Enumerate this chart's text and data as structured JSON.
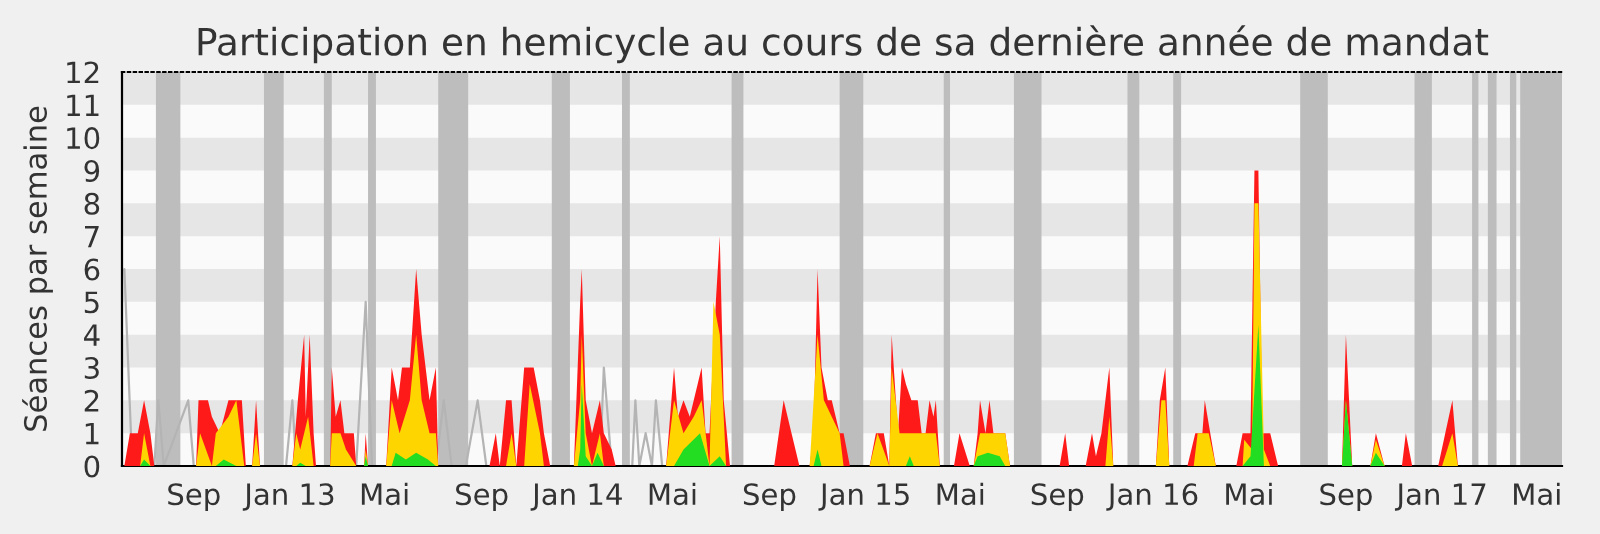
{
  "chart_data": {
    "type": "area",
    "title": "Participation en hemicycle au cours de sa dernière année de mandat",
    "ylabel": "Séances par semaine",
    "xlim": [
      "2012-06-02",
      "2017-06-02"
    ],
    "xticks": [
      {
        "value": "2012-09-01",
        "label": "Sep"
      },
      {
        "value": "2013-01-01",
        "label": "Jan 13"
      },
      {
        "value": "2013-05-01",
        "label": "Mai"
      },
      {
        "value": "2013-09-01",
        "label": "Sep"
      },
      {
        "value": "2014-01-01",
        "label": "Jan 14"
      },
      {
        "value": "2014-05-01",
        "label": "Mai"
      },
      {
        "value": "2014-09-01",
        "label": "Sep"
      },
      {
        "value": "2015-01-01",
        "label": "Jan 15"
      },
      {
        "value": "2015-05-01",
        "label": "Mai"
      },
      {
        "value": "2015-09-01",
        "label": "Sep"
      },
      {
        "value": "2016-01-01",
        "label": "Jan 16"
      },
      {
        "value": "2016-05-01",
        "label": "Mai"
      },
      {
        "value": "2016-09-01",
        "label": "Sep"
      },
      {
        "value": "2017-01-01",
        "label": "Jan 17"
      },
      {
        "value": "2017-05-01",
        "label": "Mai"
      }
    ],
    "ylim": [
      0,
      12
    ],
    "yticks": [
      0,
      1,
      2,
      3,
      4,
      5,
      6,
      7,
      8,
      9,
      10,
      11,
      12
    ],
    "bands": [
      {
        "axis": "y",
        "from": 1,
        "to": 2,
        "color": "#e6e6e6"
      },
      {
        "axis": "y",
        "from": 3,
        "to": 4,
        "color": "#e6e6e6"
      },
      {
        "axis": "y",
        "from": 5,
        "to": 6,
        "color": "#e6e6e6"
      },
      {
        "axis": "y",
        "from": 7,
        "to": 8,
        "color": "#e6e6e6"
      },
      {
        "axis": "y",
        "from": 9,
        "to": 10,
        "color": "#e6e6e6"
      },
      {
        "axis": "y",
        "from": 11,
        "to": 12,
        "color": "#e6e6e6"
      },
      {
        "axis": "x",
        "from": "2012-07-15",
        "to": "2012-08-15",
        "color": "#bdbdbd"
      },
      {
        "axis": "x",
        "from": "2012-11-29",
        "to": "2012-12-24",
        "color": "#bdbdbd"
      },
      {
        "axis": "x",
        "from": "2013-02-13",
        "to": "2013-02-23",
        "color": "#bdbdbd"
      },
      {
        "axis": "x",
        "from": "2013-04-10",
        "to": "2013-04-20",
        "color": "#bdbdbd"
      },
      {
        "axis": "x",
        "from": "2013-07-08",
        "to": "2013-08-15",
        "color": "#bdbdbd"
      },
      {
        "axis": "x",
        "from": "2013-11-29",
        "to": "2013-12-22",
        "color": "#bdbdbd"
      },
      {
        "axis": "x",
        "from": "2014-02-26",
        "to": "2014-03-08",
        "color": "#bdbdbd"
      },
      {
        "axis": "x",
        "from": "2014-07-15",
        "to": "2014-07-30",
        "color": "#bdbdbd"
      },
      {
        "axis": "x",
        "from": "2014-11-29",
        "to": "2014-12-29",
        "color": "#bdbdbd"
      },
      {
        "axis": "x",
        "from": "2015-04-10",
        "to": "2015-04-18",
        "color": "#bdbdbd"
      },
      {
        "axis": "x",
        "from": "2015-07-08",
        "to": "2015-08-12",
        "color": "#bdbdbd"
      },
      {
        "axis": "x",
        "from": "2015-11-29",
        "to": "2015-12-14",
        "color": "#bdbdbd"
      },
      {
        "axis": "x",
        "from": "2016-01-26",
        "to": "2016-02-05",
        "color": "#bdbdbd"
      },
      {
        "axis": "x",
        "from": "2016-07-05",
        "to": "2016-08-09",
        "color": "#bdbdbd"
      },
      {
        "axis": "x",
        "from": "2016-11-27",
        "to": "2016-12-19",
        "color": "#bdbdbd"
      },
      {
        "axis": "x",
        "from": "2017-02-08",
        "to": "2017-02-16",
        "color": "#bdbdbd"
      },
      {
        "axis": "x",
        "from": "2017-02-28",
        "to": "2017-03-11",
        "color": "#bdbdbd"
      },
      {
        "axis": "x",
        "from": "2017-03-28",
        "to": "2017-04-05",
        "color": "#bdbdbd"
      },
      {
        "axis": "x",
        "from": "2017-04-10",
        "to": "2017-06-02",
        "color": "#bdbdbd"
      }
    ],
    "series": [
      {
        "type": "line",
        "color": "#b4b4b4",
        "x": [
          "2012-06-05",
          "2012-06-15",
          "2012-07-13",
          "2012-07-18",
          "2012-07-25",
          "2012-08-25",
          "2012-09-01",
          "2012-11-11",
          "2012-11-19",
          "2012-11-24",
          "2012-12-27",
          "2013-01-04",
          "2013-01-09",
          "2013-03-26",
          "2013-04-07",
          "2013-04-15",
          "2013-07-05",
          "2013-07-15",
          "2013-07-25",
          "2013-08-12",
          "2013-08-27",
          "2013-09-07",
          "2014-01-29",
          "2014-02-03",
          "2014-02-13",
          "2014-03-11",
          "2014-03-15",
          "2014-03-20",
          "2014-03-28",
          "2014-04-05",
          "2014-04-10",
          "2014-04-18"
        ],
        "values": [
          6,
          0,
          0,
          2,
          0,
          2,
          0,
          0,
          null,
          0,
          0,
          2,
          0,
          0,
          5,
          0,
          0,
          2,
          0,
          0,
          2,
          0,
          0,
          3,
          0,
          0,
          2,
          0,
          1,
          0,
          2,
          0
        ]
      },
      {
        "color": "#ff1a1a",
        "x": [
          "2012-06-05",
          "2012-06-12",
          "2012-06-22",
          "2012-06-30",
          "2012-07-08",
          "2012-07-13",
          "2012-09-04",
          "2012-09-07",
          "2012-09-19",
          "2012-09-24",
          "2012-10-04",
          "2012-10-15",
          "2012-11-01",
          "2012-11-06",
          "2012-11-14",
          "2012-11-19",
          "2012-11-24",
          "2013-01-04",
          "2013-01-11",
          "2013-01-19",
          "2013-01-21",
          "2013-01-26",
          "2013-01-31",
          "2013-02-03",
          "2013-02-21",
          "2013-02-23",
          "2013-02-28",
          "2013-03-06",
          "2013-03-11",
          "2013-03-15",
          "2013-03-23",
          "2013-03-26",
          "2013-04-05",
          "2013-04-07",
          "2013-04-10",
          "2013-05-03",
          "2013-05-10",
          "2013-05-18",
          "2013-05-23",
          "2013-06-02",
          "2013-06-10",
          "2013-06-17",
          "2013-06-27",
          "2013-07-05",
          "2013-07-08",
          "2013-09-11",
          "2013-09-19",
          "2013-09-24",
          "2013-10-02",
          "2013-10-09",
          "2013-10-15",
          "2013-10-25",
          "2013-10-29",
          "2013-11-06",
          "2013-11-14",
          "2013-11-19",
          "2013-11-27",
          "2013-12-27",
          "2014-01-04",
          "2014-01-06",
          "2014-01-11",
          "2014-01-19",
          "2014-01-29",
          "2014-02-03",
          "2014-02-13",
          "2014-02-18",
          "2014-04-23",
          "2014-05-03",
          "2014-05-08",
          "2014-05-15",
          "2014-05-23",
          "2014-05-28",
          "2014-06-02",
          "2014-06-07",
          "2014-06-12",
          "2014-06-17",
          "2014-06-25",
          "2014-06-30",
          "2014-07-05",
          "2014-07-13",
          "2014-09-07",
          "2014-09-19",
          "2014-09-29",
          "2014-10-09",
          "2014-10-22",
          "2014-10-27",
          "2014-11-01",
          "2014-11-06",
          "2014-11-14",
          "2014-11-19",
          "2014-11-29",
          "2014-12-04",
          "2014-12-12",
          "2015-01-06",
          "2015-01-14",
          "2015-01-24",
          "2015-01-31",
          "2015-02-03",
          "2015-02-11",
          "2015-02-16",
          "2015-02-21",
          "2015-02-28",
          "2015-03-08",
          "2015-03-13",
          "2015-03-18",
          "2015-03-23",
          "2015-03-28",
          "2015-03-31",
          "2015-04-05",
          "2015-04-23",
          "2015-04-30",
          "2015-05-13",
          "2015-05-18",
          "2015-05-23",
          "2015-05-26",
          "2015-06-02",
          "2015-06-07",
          "2015-06-12",
          "2015-06-17",
          "2015-06-27",
          "2015-07-03",
          "2015-09-04",
          "2015-09-11",
          "2015-09-16",
          "2015-10-07",
          "2015-10-15",
          "2015-10-20",
          "2015-10-27",
          "2015-11-01",
          "2015-11-06",
          "2015-11-11",
          "2016-01-04",
          "2016-01-09",
          "2016-01-16",
          "2016-01-21",
          "2016-02-13",
          "2016-02-23",
          "2016-03-03",
          "2016-03-06",
          "2016-03-13",
          "2016-03-20",
          "2016-04-15",
          "2016-04-23",
          "2016-04-27",
          "2016-05-03",
          "2016-05-08",
          "2016-05-13",
          "2016-05-18",
          "2016-05-28",
          "2016-06-07",
          "2016-08-27",
          "2016-09-01",
          "2016-09-09",
          "2016-10-02",
          "2016-10-09",
          "2016-10-20",
          "2016-11-11",
          "2016-11-16",
          "2016-11-24",
          "2016-12-27",
          "2017-01-14",
          "2017-01-21"
        ],
        "values": [
          0,
          1,
          1,
          2,
          1,
          0,
          0,
          2,
          2,
          1.5,
          1,
          2,
          2,
          0,
          0,
          2,
          0,
          0,
          2,
          4,
          1.5,
          4,
          1,
          0,
          0,
          3,
          1.5,
          2,
          1,
          1,
          1,
          0,
          0,
          1,
          0,
          0,
          3,
          2,
          3,
          3,
          6,
          4,
          2,
          3,
          0,
          0,
          1,
          0,
          2,
          2,
          0,
          3,
          3,
          3,
          2,
          1,
          0,
          0,
          5,
          6,
          2,
          1,
          2,
          1,
          0.5,
          0,
          0,
          3,
          1.5,
          2,
          1.5,
          2,
          2.5,
          3,
          1,
          1,
          5,
          7,
          2,
          0,
          0,
          2,
          1,
          0,
          0,
          1,
          6,
          3,
          2,
          2,
          1,
          1,
          0,
          0,
          1,
          1,
          0,
          4,
          1,
          3,
          2.5,
          2,
          2,
          1,
          1,
          2,
          1.5,
          2,
          0,
          0,
          1,
          0,
          0,
          1,
          2,
          1,
          2,
          1,
          1,
          1,
          0,
          0,
          1,
          0,
          0,
          1,
          0.3,
          1,
          2,
          3,
          0,
          0,
          2,
          3,
          0,
          0,
          1,
          1,
          2,
          1,
          0,
          0,
          1,
          1,
          1,
          9,
          9,
          1,
          1,
          0,
          0,
          4,
          0,
          0,
          1,
          0,
          0,
          1,
          0,
          0,
          2,
          0
        ]
      },
      {
        "color": "#ffd500",
        "x": [
          "2012-06-25",
          "2012-06-30",
          "2012-07-08",
          "2012-09-04",
          "2012-09-09",
          "2012-09-24",
          "2012-09-29",
          "2012-10-15",
          "2012-10-25",
          "2012-11-04",
          "2012-11-14",
          "2012-11-19",
          "2012-11-24",
          "2013-01-04",
          "2013-01-09",
          "2013-01-14",
          "2013-01-24",
          "2013-01-31",
          "2013-02-21",
          "2013-02-23",
          "2013-03-06",
          "2013-03-13",
          "2013-03-26",
          "2013-04-05",
          "2013-04-07",
          "2013-04-10",
          "2013-05-03",
          "2013-05-10",
          "2013-05-20",
          "2013-06-02",
          "2013-06-10",
          "2013-06-17",
          "2013-06-27",
          "2013-07-05",
          "2013-07-08",
          "2013-10-02",
          "2013-10-09",
          "2013-10-15",
          "2013-10-25",
          "2013-11-01",
          "2013-11-14",
          "2013-11-19",
          "2013-12-27",
          "2014-01-04",
          "2014-01-06",
          "2014-01-11",
          "2014-01-19",
          "2014-01-29",
          "2014-02-03",
          "2014-04-23",
          "2014-05-03",
          "2014-05-15",
          "2014-05-28",
          "2014-06-07",
          "2014-06-17",
          "2014-06-22",
          "2014-06-30",
          "2014-07-08",
          "2014-10-22",
          "2014-11-01",
          "2014-11-09",
          "2014-11-19",
          "2014-11-29",
          "2014-12-04",
          "2015-01-06",
          "2015-01-16",
          "2015-01-31",
          "2015-02-03",
          "2015-02-13",
          "2015-02-26",
          "2015-03-11",
          "2015-03-23",
          "2015-03-31",
          "2015-04-05",
          "2015-05-18",
          "2015-05-26",
          "2015-06-07",
          "2015-06-27",
          "2015-07-03",
          "2015-11-01",
          "2015-11-06",
          "2015-11-11",
          "2016-01-04",
          "2016-01-11",
          "2016-01-16",
          "2016-01-21",
          "2016-02-21",
          "2016-02-26",
          "2016-03-11",
          "2016-03-20",
          "2016-04-23",
          "2016-04-25",
          "2016-05-05",
          "2016-05-08",
          "2016-05-13",
          "2016-05-20",
          "2016-05-28",
          "2016-08-27",
          "2016-09-01",
          "2016-09-09",
          "2016-10-02",
          "2016-10-09",
          "2016-10-20",
          "2017-01-01",
          "2017-01-14",
          "2017-01-21"
        ],
        "values": [
          0,
          1,
          0,
          0,
          1,
          0,
          1,
          1.5,
          2,
          0,
          0,
          1,
          0,
          0,
          1,
          0.5,
          1.5,
          0,
          0,
          1,
          1,
          0.5,
          0,
          0,
          0.5,
          0,
          0,
          2,
          1,
          2,
          4,
          2,
          1,
          1,
          0,
          0,
          1,
          0,
          0,
          2.5,
          1,
          0,
          0,
          2,
          4,
          1,
          0,
          1,
          0,
          0,
          2,
          1,
          1.5,
          2,
          0,
          5,
          4,
          0,
          0,
          4,
          2,
          1.5,
          1,
          0,
          0,
          1,
          0,
          3,
          1,
          1,
          1,
          1,
          1,
          0,
          0,
          1,
          1,
          1,
          0,
          0,
          1.5,
          0,
          0,
          2,
          2,
          0,
          0,
          1,
          1,
          0,
          0,
          0.8,
          0.5,
          8,
          8,
          0.5,
          0,
          0,
          2,
          0,
          0,
          0.8,
          0,
          0,
          1,
          0
        ]
      },
      {
        "color": "#22dd22",
        "x": [
          "2012-06-25",
          "2012-06-30",
          "2012-07-08",
          "2012-09-29",
          "2012-10-09",
          "2012-10-25",
          "2013-01-09",
          "2013-01-14",
          "2013-01-21",
          "2013-04-05",
          "2013-04-07",
          "2013-04-10",
          "2013-05-10",
          "2013-05-15",
          "2013-05-28",
          "2013-06-10",
          "2013-06-25",
          "2013-07-05",
          "2014-01-01",
          "2014-01-04",
          "2014-01-06",
          "2014-01-11",
          "2014-01-19",
          "2014-01-26",
          "2014-02-03",
          "2014-05-03",
          "2014-05-15",
          "2014-06-05",
          "2014-06-17",
          "2014-06-30",
          "2014-07-08",
          "2014-10-27",
          "2014-11-01",
          "2014-11-06",
          "2015-02-21",
          "2015-02-26",
          "2015-03-03",
          "2015-05-18",
          "2015-05-23",
          "2015-06-05",
          "2015-06-20",
          "2015-06-27",
          "2016-04-23",
          "2016-05-03",
          "2016-05-13",
          "2016-05-20",
          "2016-08-27",
          "2016-09-01",
          "2016-09-09",
          "2016-10-02",
          "2016-10-09",
          "2016-10-20"
        ],
        "values": [
          0,
          0.2,
          0,
          0,
          0.2,
          0,
          0,
          0.1,
          0,
          0,
          0.3,
          0,
          0,
          0.4,
          0.2,
          0.4,
          0.2,
          0,
          0,
          0.5,
          2.5,
          0.3,
          0,
          0.4,
          0,
          0,
          0.5,
          1,
          0,
          0.3,
          0,
          0,
          0.5,
          0,
          0,
          0.3,
          0,
          0,
          0.3,
          0.4,
          0.3,
          0,
          0,
          0.3,
          4.3,
          0,
          0,
          2,
          0,
          0,
          0.4,
          0
        ]
      }
    ]
  }
}
